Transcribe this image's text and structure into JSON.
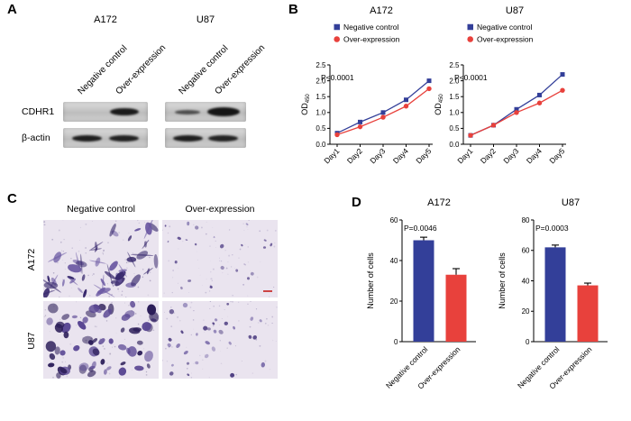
{
  "colors": {
    "negative_control": "#333f99",
    "over_expression": "#e8413c",
    "axis": "#000000",
    "micrograph_bg": "#eae4ef"
  },
  "panelA": {
    "label": "A",
    "row_labels": [
      "CDHR1",
      "β-actin"
    ],
    "groups": [
      {
        "title": "A172",
        "lanes": [
          "Negative control",
          "Over-expression"
        ],
        "bands": {
          "CDHR1": [
            {
              "intensity": 0,
              "w": 0,
              "h": 0
            },
            {
              "intensity": 0.95,
              "w": 32,
              "h": 8
            }
          ],
          "actin": [
            {
              "intensity": 0.92,
              "w": 33,
              "h": 7
            },
            {
              "intensity": 0.9,
              "w": 33,
              "h": 7
            }
          ]
        }
      },
      {
        "title": "U87",
        "lanes": [
          "Negative control",
          "Over-expression"
        ],
        "bands": {
          "CDHR1": [
            {
              "intensity": 0.5,
              "w": 28,
              "h": 5
            },
            {
              "intensity": 1,
              "w": 36,
              "h": 10
            }
          ],
          "actin": [
            {
              "intensity": 0.92,
              "w": 33,
              "h": 7
            },
            {
              "intensity": 0.88,
              "w": 33,
              "h": 7
            }
          ]
        }
      }
    ]
  },
  "panelB": {
    "label": "B",
    "charts": [
      0,
      1
    ]
  },
  "panelC": {
    "label": "C",
    "col_headers": [
      "Negative control",
      "Over-expression"
    ],
    "row_labels": [
      "A172",
      "U87"
    ],
    "images": [
      {
        "id": "a172-negative-control",
        "row": "A172",
        "col": "Negative control",
        "seed": 7,
        "cells": 40,
        "elongated": true,
        "size": [
          3.5,
          8
        ],
        "aspect": [
          0.25,
          0.55
        ],
        "dark": "#35266b",
        "light": "#6a58a2",
        "speckles": 90,
        "scalebar": false
      },
      {
        "id": "a172-over-expression",
        "row": "A172",
        "col": "Over-expression",
        "seed": 11,
        "cells": 22,
        "elongated": false,
        "size": [
          1.1,
          2.4
        ],
        "aspect": [
          0.6,
          1
        ],
        "dark": "#5c4c8e",
        "light": "#9186b8",
        "speckles": 80,
        "scalebar": true
      },
      {
        "id": "u87-negative-control",
        "row": "U87",
        "col": "Negative control",
        "seed": 23,
        "cells": 66,
        "elongated": false,
        "size": [
          2.8,
          6.2
        ],
        "aspect": [
          0.5,
          0.95
        ],
        "dark": "#2c1e59",
        "light": "#5a4793",
        "speckles": 70,
        "scalebar": false
      },
      {
        "id": "u87-over-expression",
        "row": "U87",
        "col": "Over-expression",
        "seed": 5,
        "cells": 32,
        "elongated": false,
        "size": [
          1.3,
          3
        ],
        "aspect": [
          0.6,
          1
        ],
        "dark": "#4a3a7e",
        "light": "#7f71ad",
        "speckles": 70,
        "scalebar": false
      }
    ]
  },
  "panelD": {
    "label": "D",
    "charts": [
      2,
      3
    ]
  },
  "chart_data": [
    {
      "type": "line",
      "title": "A172",
      "x": [
        "Day1",
        "Day2",
        "Day3",
        "Day4",
        "Day5"
      ],
      "series": [
        {
          "name": "Negative control",
          "color": "#333f99",
          "marker": "square",
          "values": [
            0.35,
            0.7,
            1.0,
            1.4,
            2.0
          ]
        },
        {
          "name": "Over-expression",
          "color": "#e8413c",
          "marker": "circle",
          "values": [
            0.3,
            0.55,
            0.85,
            1.2,
            1.75
          ]
        }
      ],
      "annotation": "P<0.0001",
      "ylabel_base": "OD",
      "ylabel_sub": "450",
      "ylim": [
        0,
        2.5
      ],
      "yticks": [
        0,
        0.5,
        1.0,
        1.5,
        2.0,
        2.5
      ],
      "legend_position": "top",
      "grid": false
    },
    {
      "type": "line",
      "title": "U87",
      "x": [
        "Day1",
        "Day2",
        "Day3",
        "Day4",
        "Day5"
      ],
      "series": [
        {
          "name": "Negative control",
          "color": "#333f99",
          "marker": "square",
          "values": [
            0.28,
            0.6,
            1.1,
            1.55,
            2.2
          ]
        },
        {
          "name": "Over-expression",
          "color": "#e8413c",
          "marker": "circle",
          "values": [
            0.28,
            0.6,
            1.0,
            1.3,
            1.7
          ]
        }
      ],
      "annotation": "P<0.0001",
      "ylabel_base": "OD",
      "ylabel_sub": "450",
      "ylim": [
        0,
        2.5
      ],
      "yticks": [
        0,
        0.5,
        1.0,
        1.5,
        2.0,
        2.5
      ],
      "legend_position": "top",
      "grid": false
    },
    {
      "type": "bar",
      "title": "A172",
      "categories": [
        "Negative control",
        "Over-expression"
      ],
      "values": [
        50,
        33
      ],
      "errors": [
        1.5,
        3
      ],
      "colors": [
        "#333f99",
        "#e8413c"
      ],
      "annotation": "P=0.0046",
      "ylabel": "Number of cells",
      "ylim": [
        0,
        60
      ],
      "yticks": [
        0,
        20,
        40,
        60
      ],
      "grid": false
    },
    {
      "type": "bar",
      "title": "U87",
      "categories": [
        "Negative control",
        "Over-expression"
      ],
      "values": [
        62,
        37
      ],
      "errors": [
        1.5,
        1.5
      ],
      "colors": [
        "#333f99",
        "#e8413c"
      ],
      "annotation": "P=0.0003",
      "ylabel": "Number of cells",
      "ylim": [
        0,
        80
      ],
      "yticks": [
        0,
        20,
        40,
        60,
        80
      ],
      "grid": false
    }
  ]
}
